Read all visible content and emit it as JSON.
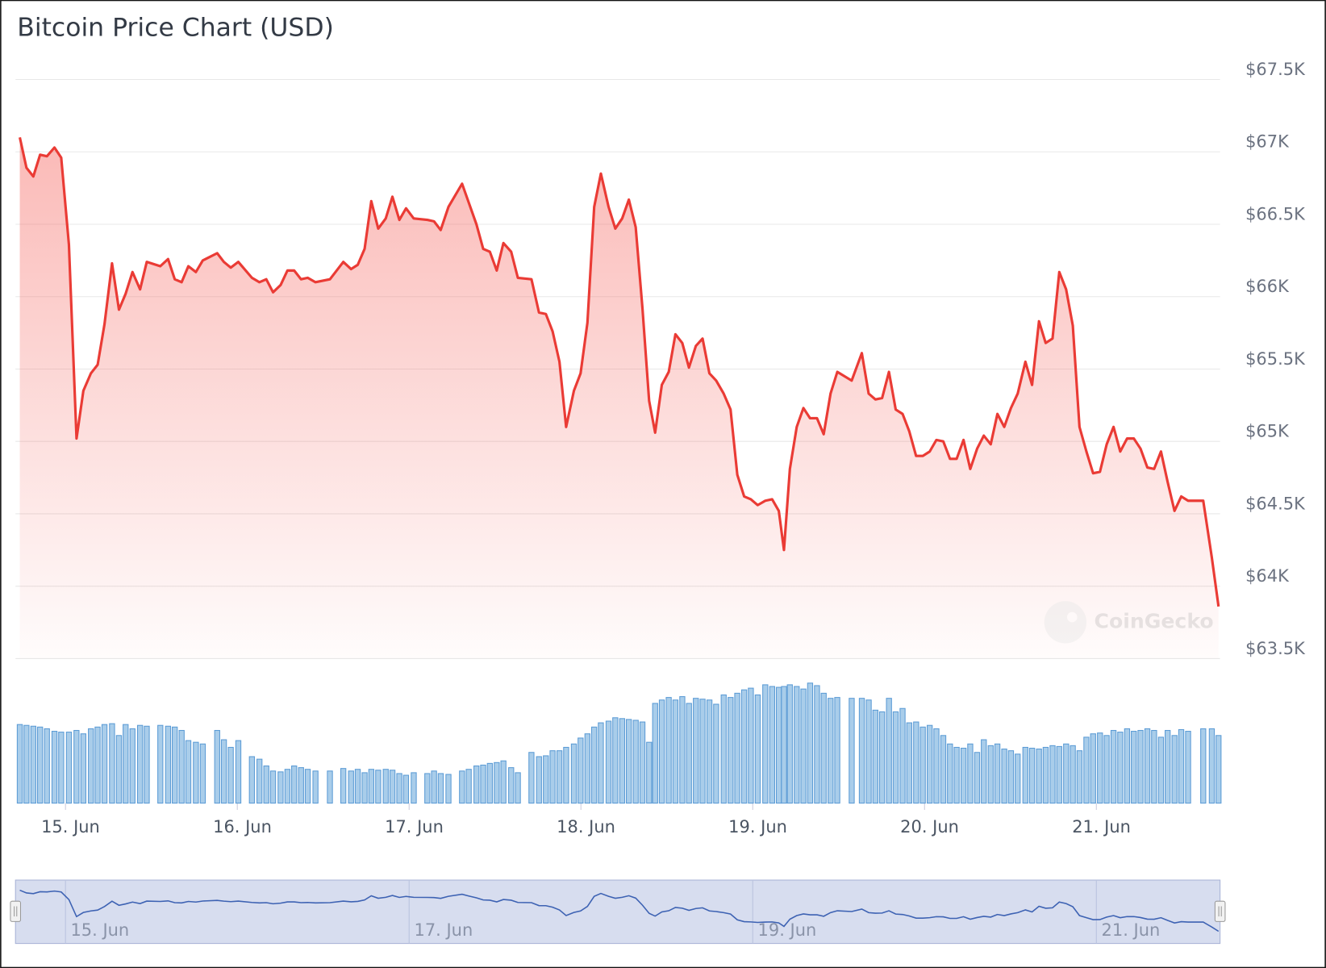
{
  "chart_data": {
    "type": "line",
    "title": "Bitcoin Price Chart (USD)",
    "watermark": "CoinGecko",
    "line_color": "#ea3b35",
    "volume_color": "#a9cdea",
    "navigator_color": "#3d62b3",
    "grid": true,
    "xlim": [
      14.709,
      21.72
    ],
    "xticks": [
      {
        "value": 15,
        "label": "15. Jun"
      },
      {
        "value": 16,
        "label": "16. Jun"
      },
      {
        "value": 17,
        "label": "17. Jun"
      },
      {
        "value": 18,
        "label": "18. Jun"
      },
      {
        "value": 19,
        "label": "19. Jun"
      },
      {
        "value": 20,
        "label": "20. Jun"
      },
      {
        "value": 21,
        "label": "21. Jun"
      }
    ],
    "navigator_ticks": [
      0,
      2,
      4,
      6
    ],
    "ylim": [
      63500,
      67500
    ],
    "yticks": [
      {
        "value": 63500,
        "label": "$63.5K"
      },
      {
        "value": 64000,
        "label": "$64K"
      },
      {
        "value": 64500,
        "label": "$64.5K"
      },
      {
        "value": 65000,
        "label": "$65K"
      },
      {
        "value": 65500,
        "label": "$65.5K"
      },
      {
        "value": 66000,
        "label": "$66K"
      },
      {
        "value": 66500,
        "label": "$66.5K"
      },
      {
        "value": 67000,
        "label": "$67K"
      },
      {
        "value": 67500,
        "label": "$67.5K"
      }
    ],
    "vlim": [
      0,
      160
    ],
    "x": [
      14.734,
      14.773,
      14.813,
      14.852,
      14.892,
      14.936,
      14.975,
      15.02,
      15.064,
      15.104,
      15.148,
      15.187,
      15.227,
      15.271,
      15.311,
      15.35,
      15.39,
      15.434,
      15.473,
      15.552,
      15.597,
      15.636,
      15.676,
      15.715,
      15.759,
      15.799,
      15.883,
      15.922,
      15.962,
      16.006,
      16.085,
      16.129,
      16.169,
      16.208,
      16.252,
      16.292,
      16.331,
      16.371,
      16.41,
      16.455,
      16.539,
      16.617,
      16.662,
      16.701,
      16.741,
      16.78,
      16.82,
      16.864,
      16.903,
      16.943,
      16.982,
      17.027,
      17.106,
      17.145,
      17.184,
      17.229,
      17.308,
      17.347,
      17.392,
      17.431,
      17.47,
      17.51,
      17.549,
      17.594,
      17.633,
      17.712,
      17.756,
      17.796,
      17.835,
      17.875,
      17.914,
      17.959,
      17.998,
      18.038,
      18.077,
      18.116,
      18.161,
      18.2,
      18.24,
      18.279,
      18.319,
      18.358,
      18.397,
      18.432,
      18.471,
      18.511,
      18.55,
      18.59,
      18.629,
      18.669,
      18.708,
      18.748,
      18.787,
      18.831,
      18.871,
      18.91,
      18.95,
      18.989,
      19.029,
      19.073,
      19.113,
      19.152,
      19.182,
      19.216,
      19.256,
      19.295,
      19.334,
      19.374,
      19.413,
      19.453,
      19.492,
      19.576,
      19.635,
      19.675,
      19.714,
      19.753,
      19.793,
      19.832,
      19.872,
      19.911,
      19.951,
      19.99,
      20.03,
      20.069,
      20.109,
      20.148,
      20.187,
      20.227,
      20.266,
      20.306,
      20.345,
      20.385,
      20.424,
      20.464,
      20.503,
      20.542,
      20.587,
      20.626,
      20.666,
      20.705,
      20.745,
      20.784,
      20.824,
      20.863,
      20.902,
      20.942,
      20.981,
      21.021,
      21.06,
      21.1,
      21.139,
      21.179,
      21.218,
      21.257,
      21.297,
      21.336,
      21.376,
      21.415,
      21.455,
      21.494,
      21.534,
      21.622,
      21.672,
      21.711
    ],
    "values": [
      67100,
      66890,
      66830,
      66980,
      66970,
      67030,
      66960,
      66360,
      65020,
      65350,
      65470,
      65530,
      65810,
      66230,
      65910,
      66020,
      66170,
      66050,
      66240,
      66210,
      66260,
      66120,
      66100,
      66210,
      66170,
      66250,
      66300,
      66240,
      66200,
      66240,
      66130,
      66100,
      66120,
      66030,
      66080,
      66180,
      66180,
      66120,
      66130,
      66100,
      66120,
      66240,
      66190,
      66220,
      66330,
      66660,
      66470,
      66540,
      66690,
      66530,
      66610,
      66540,
      66530,
      66520,
      66460,
      66620,
      66780,
      66650,
      66500,
      66330,
      66310,
      66180,
      66370,
      66310,
      66130,
      66120,
      65890,
      65880,
      65760,
      65550,
      65100,
      65350,
      65470,
      65820,
      66620,
      66850,
      66620,
      66470,
      66540,
      66670,
      66480,
      65920,
      65280,
      65060,
      65390,
      65480,
      65740,
      65680,
      65510,
      65660,
      65710,
      65470,
      65420,
      65330,
      65220,
      64770,
      64620,
      64600,
      64560,
      64590,
      64600,
      64520,
      64250,
      64810,
      65100,
      65230,
      65160,
      65160,
      65050,
      65330,
      65480,
      65420,
      65610,
      65330,
      65290,
      65300,
      65480,
      65220,
      65190,
      65070,
      64900,
      64900,
      64930,
      65010,
      65000,
      64880,
      64880,
      65010,
      64810,
      64950,
      65040,
      64980,
      65190,
      65100,
      65230,
      65330,
      65550,
      65390,
      65830,
      65680,
      65710,
      66170,
      66050,
      65800,
      65100,
      64930,
      64780,
      64790,
      64980,
      65100,
      64930,
      65020,
      65020,
      64950,
      64820,
      64810,
      64930,
      64720,
      64520,
      64620,
      64590,
      64590,
      64200,
      63860
    ],
    "volume": [
      93,
      92,
      91,
      90,
      88,
      85,
      84,
      84,
      86,
      82,
      88,
      90,
      93,
      94,
      80,
      93,
      88,
      92,
      91,
      92,
      91,
      90,
      86,
      74,
      72,
      70,
      86,
      75,
      66,
      74,
      55,
      52,
      44,
      38,
      37,
      40,
      44,
      42,
      40,
      38,
      38,
      41,
      38,
      40,
      36,
      40,
      39,
      40,
      39,
      35,
      33,
      36,
      35,
      38,
      35,
      34,
      38,
      40,
      44,
      45,
      47,
      48,
      50,
      42,
      36,
      60,
      55,
      56,
      62,
      62,
      66,
      70,
      77,
      82,
      90,
      95,
      97,
      101,
      100,
      99,
      98,
      96,
      72,
      118,
      122,
      125,
      122,
      126,
      118,
      124,
      123,
      122,
      117,
      128,
      125,
      130,
      134,
      136,
      128,
      140,
      138,
      137,
      138,
      140,
      138,
      135,
      142,
      139,
      130,
      124,
      125,
      124,
      124,
      122,
      110,
      108,
      124,
      108,
      112,
      95,
      96,
      90,
      92,
      88,
      80,
      70,
      66,
      65,
      70,
      60,
      75,
      68,
      70,
      64,
      62,
      58,
      66,
      65,
      64,
      66,
      68,
      67,
      70,
      68,
      62,
      78,
      82,
      83,
      80,
      86,
      84,
      88,
      85,
      86,
      88,
      86,
      78,
      86,
      80,
      87,
      85,
      88,
      88,
      80
    ]
  }
}
